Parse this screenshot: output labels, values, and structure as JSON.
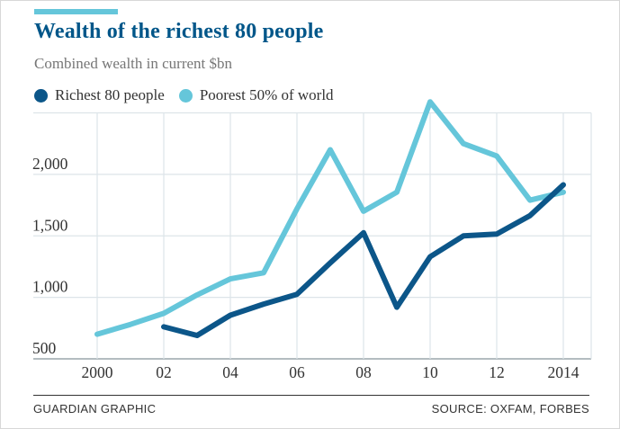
{
  "header": {
    "title": "Wealth of the richest 80 people",
    "subtitle": "Combined wealth in current $bn"
  },
  "legend": {
    "items": [
      {
        "label": "Richest 80 people",
        "color": "#0c5689"
      },
      {
        "label": "Poorest 50% of world",
        "color": "#65c6da"
      }
    ]
  },
  "footer": {
    "credit": "GUARDIAN GRAPHIC",
    "source": "SOURCE: OXFAM, FORBES"
  },
  "colors": {
    "accent_bar": "#65c6da",
    "title": "#005689",
    "subtitle": "#767676",
    "tick_text": "#333333",
    "gridline": "#dde4e9",
    "axis_line": "#9aa5ab"
  },
  "chart_data": {
    "type": "line",
    "title": "Wealth of the richest 80 people",
    "subtitle": "Combined wealth in current $bn",
    "unit": "$bn",
    "x": [
      2000,
      2001,
      2002,
      2003,
      2004,
      2005,
      2006,
      2007,
      2008,
      2009,
      2010,
      2011,
      2012,
      2013,
      2014
    ],
    "series": [
      {
        "name": "Richest 80 people",
        "color": "#0c5689",
        "values": [
          null,
          null,
          760,
          690,
          855,
          945,
          1025,
          1280,
          1525,
          920,
          1330,
          1500,
          1515,
          1665,
          1915
        ]
      },
      {
        "name": "Poorest 50% of world",
        "color": "#65c6da",
        "values": [
          700,
          780,
          870,
          1020,
          1150,
          1200,
          1720,
          2200,
          1700,
          1855,
          2590,
          2250,
          2150,
          1790,
          1855
        ]
      }
    ],
    "xticks": [
      {
        "value": 2000,
        "label": "2000"
      },
      {
        "value": 2002,
        "label": "02"
      },
      {
        "value": 2004,
        "label": "04"
      },
      {
        "value": 2006,
        "label": "06"
      },
      {
        "value": 2008,
        "label": "08"
      },
      {
        "value": 2010,
        "label": "10"
      },
      {
        "value": 2012,
        "label": "12"
      },
      {
        "value": 2014,
        "label": "2014"
      }
    ],
    "yticks": [
      {
        "value": 500,
        "label": "500"
      },
      {
        "value": 1000,
        "label": "1,000"
      },
      {
        "value": 1500,
        "label": "1,500"
      },
      {
        "value": 2000,
        "label": "2,000"
      }
    ],
    "ylim": [
      500,
      2500
    ],
    "grid": true,
    "legend_position": "top"
  }
}
